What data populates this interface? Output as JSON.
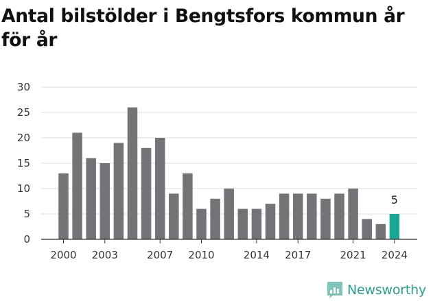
{
  "chart_data": {
    "type": "bar",
    "title": "Antal bilstölder i Bengtsfors kommun år för år",
    "xlabel": "",
    "ylabel": "",
    "categories": [
      "2000",
      "2001",
      "2002",
      "2003",
      "2004",
      "2005",
      "2006",
      "2007",
      "2008",
      "2009",
      "2010",
      "2011",
      "2012",
      "2013",
      "2014",
      "2015",
      "2016",
      "2017",
      "2018",
      "2019",
      "2020",
      "2021",
      "2022",
      "2023",
      "2024"
    ],
    "values": [
      13,
      21,
      16,
      15,
      19,
      26,
      18,
      20,
      9,
      13,
      6,
      8,
      10,
      6,
      6,
      7,
      9,
      9,
      9,
      8,
      9,
      10,
      4,
      3,
      5
    ],
    "x_tick_labels": [
      "2000",
      "2003",
      "2007",
      "2010",
      "2014",
      "2017",
      "2021",
      "2024"
    ],
    "y_ticks": [
      "0",
      "5",
      "10",
      "15",
      "20",
      "25",
      "30"
    ],
    "ylim": [
      0,
      30
    ],
    "grid": true,
    "highlight": {
      "category": "2024",
      "label": "5"
    },
    "colors": {
      "bar": "#747378",
      "highlight": "#1aa594",
      "grid": "#dddddd"
    }
  },
  "brand": {
    "name": "Newsworthy",
    "icon": "newsworthy-logo-icon",
    "color": "#2a9d8f"
  }
}
